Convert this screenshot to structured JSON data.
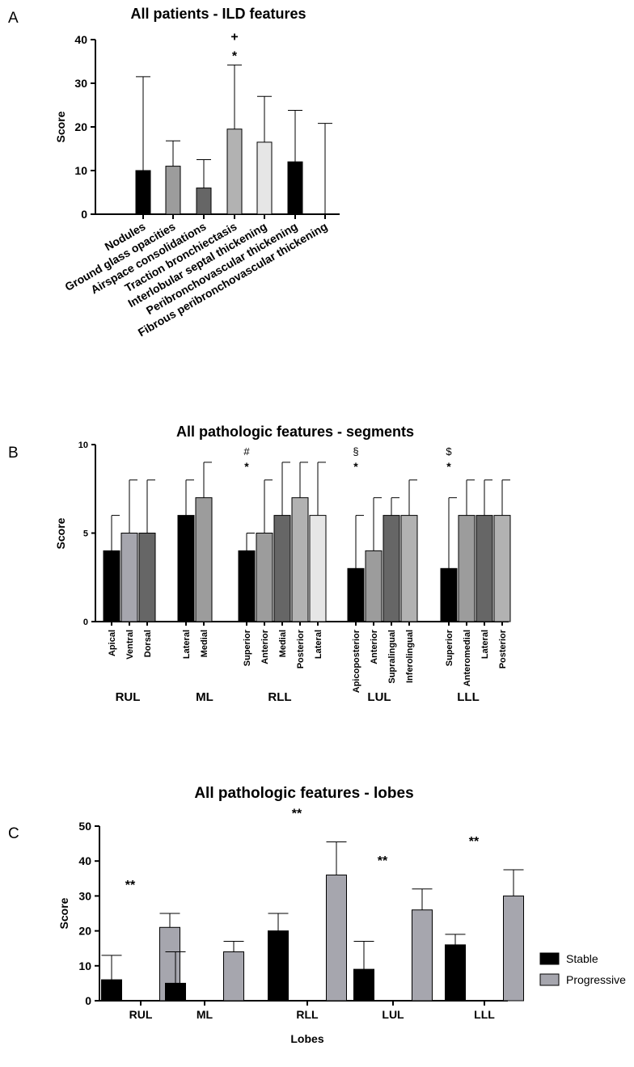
{
  "chart_data": [
    {
      "panel": "A",
      "type": "bar",
      "title": "All patients - ILD features",
      "ylabel": "Score",
      "ylim": [
        0,
        40
      ],
      "yticks": [
        0,
        10,
        20,
        30,
        40
      ],
      "categories": [
        "Nodules",
        "Ground glass opacities",
        "Airspace consolidations",
        "Traction bronchiectasis",
        "Interlobular septal thickening",
        "Peribronchovascular thickening",
        "Fibrous peribronchovascular thickening"
      ],
      "values": [
        10,
        11,
        6,
        19.5,
        16.5,
        12,
        0
      ],
      "error_upper": [
        31.5,
        16.8,
        12.5,
        34.2,
        27,
        23.8,
        20.8
      ],
      "colors": [
        "#000000",
        "#9c9c9c",
        "#666666",
        "#b2b2b2",
        "#e6e6e6",
        "#000000",
        "#ffffff"
      ],
      "annotations": [
        {
          "category": "Traction bronchiectasis",
          "symbols": [
            "+",
            "*"
          ]
        }
      ]
    },
    {
      "panel": "B",
      "type": "bar",
      "title": "All pathologic features - segments",
      "ylabel": "Score",
      "ylim": [
        0,
        10
      ],
      "yticks": [
        0,
        5,
        10
      ],
      "groups": [
        {
          "name": "RUL",
          "categories": [
            "Apical",
            "Ventral",
            "Dorsal"
          ],
          "values": [
            4,
            5,
            5
          ],
          "error_upper": [
            6,
            8,
            8
          ],
          "colors": [
            "#000000",
            "#a6a6ae",
            "#666666"
          ]
        },
        {
          "name": "ML",
          "categories": [
            "Lateral",
            "Medial"
          ],
          "values": [
            6,
            7
          ],
          "error_upper": [
            8,
            9
          ],
          "colors": [
            "#000000",
            "#9c9c9c"
          ]
        },
        {
          "name": "RLL",
          "categories": [
            "Superior",
            "Anterior",
            "Medial",
            "Posterior",
            "Lateral"
          ],
          "values": [
            4,
            5,
            6,
            7,
            6
          ],
          "error_upper": [
            5,
            8,
            9,
            9,
            9
          ],
          "colors": [
            "#000000",
            "#9c9c9c",
            "#666666",
            "#b2b2b2",
            "#e6e6e6"
          ],
          "annotation": [
            "#",
            "*"
          ]
        },
        {
          "name": "LUL",
          "categories": [
            "Apicoposterior",
            "Anterior",
            "Supralingual",
            "Inferolingual"
          ],
          "values": [
            3,
            4,
            6,
            6
          ],
          "error_upper": [
            6,
            7,
            7,
            8
          ],
          "colors": [
            "#000000",
            "#9c9c9c",
            "#666666",
            "#b2b2b2"
          ],
          "annotation": [
            "§",
            "*"
          ]
        },
        {
          "name": "LLL",
          "categories": [
            "Superior",
            "Anteromedial",
            "Lateral",
            "Posterior"
          ],
          "values": [
            3,
            6,
            6,
            6
          ],
          "error_upper": [
            7,
            8,
            8,
            8
          ],
          "colors": [
            "#000000",
            "#9c9c9c",
            "#666666",
            "#b2b2b2"
          ],
          "annotation": [
            "$",
            "*"
          ]
        }
      ]
    },
    {
      "panel": "C",
      "type": "bar",
      "title": "All pathologic features - lobes",
      "xlabel": "Lobes",
      "ylabel": "Score",
      "ylim": [
        0,
        50
      ],
      "yticks": [
        0,
        10,
        20,
        30,
        40,
        50
      ],
      "categories": [
        "RUL",
        "ML",
        "RLL",
        "LUL",
        "LLL"
      ],
      "series": [
        {
          "name": "Stable",
          "color": "#000000",
          "values": [
            6,
            5,
            20,
            9,
            16
          ],
          "error_upper": [
            13,
            14,
            25,
            17,
            19
          ]
        },
        {
          "name": "Progressive",
          "color": "#a6a6ae",
          "values": [
            21,
            14,
            36,
            26,
            30
          ],
          "error_upper": [
            25,
            17,
            45.5,
            32,
            37.5
          ]
        }
      ],
      "significance": [
        "**",
        "",
        "**",
        "**",
        "**"
      ],
      "legend": "right"
    }
  ],
  "panel_labels": [
    "A",
    "B",
    "C"
  ]
}
